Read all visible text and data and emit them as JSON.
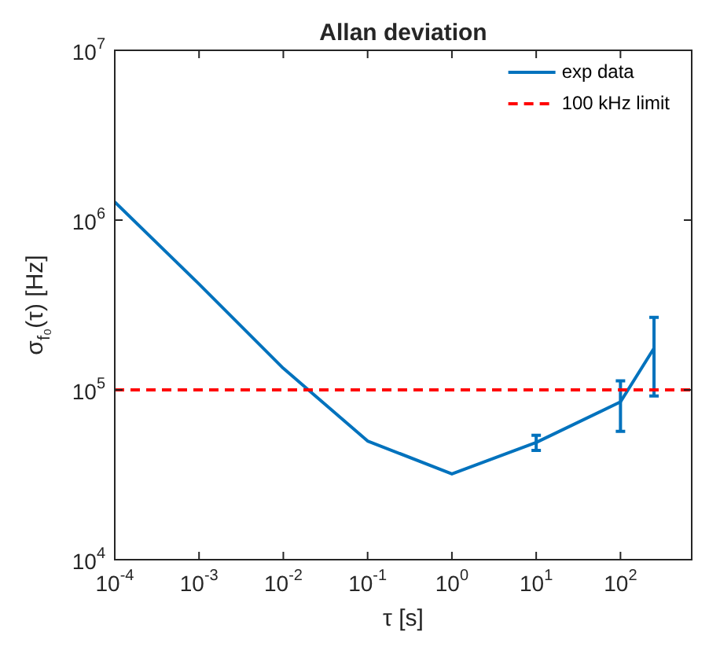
{
  "chart_data": {
    "type": "line",
    "title": "Allan deviation",
    "xlabel": "τ [s]",
    "ylabel": "σ$_{f₀}$(τ) [Hz]",
    "x": [
      0.0001,
      0.001,
      0.01,
      0.1,
      1,
      10,
      100,
      250
    ],
    "series": [
      {
        "name": "exp data",
        "color": "#0072bd",
        "values": [
          1280000,
          420000,
          134000,
          50000,
          32000,
          49000,
          85000,
          176000
        ],
        "errors": [
          null,
          null,
          null,
          null,
          null,
          [
            44000,
            54000
          ],
          [
            57000,
            113000
          ],
          [
            92000,
            267000
          ]
        ]
      }
    ],
    "ref_lines": [
      {
        "axis": "y",
        "value": 100000,
        "label": "100 kHz limit",
        "color": "#ff0000",
        "line_style": "dashed"
      }
    ],
    "log": "xy",
    "xlim": [
      0.0001,
      700
    ],
    "ylim": [
      10000,
      10000000
    ],
    "xticks": [
      {
        "value": 0.0001,
        "label": "10$^{-4}$"
      },
      {
        "value": 0.001,
        "label": "10$^{-3}$"
      },
      {
        "value": 0.01,
        "label": "10$^{-2}$"
      },
      {
        "value": 0.1,
        "label": "10$^{-1}$"
      },
      {
        "value": 1,
        "label": "10$^{0}$"
      },
      {
        "value": 10,
        "label": "10$^{1}$"
      },
      {
        "value": 100,
        "label": "10$^{2}$"
      }
    ],
    "yticks": [
      {
        "value": 10000,
        "label": "10$^{4}$"
      },
      {
        "value": 100000,
        "label": "10$^{5}$"
      },
      {
        "value": 1000000,
        "label": "10$^{6}$"
      },
      {
        "value": 10000000,
        "label": "10$^{7}$"
      }
    ],
    "grid": false,
    "legend": "top right",
    "marker": "none",
    "line_style": "solid"
  }
}
